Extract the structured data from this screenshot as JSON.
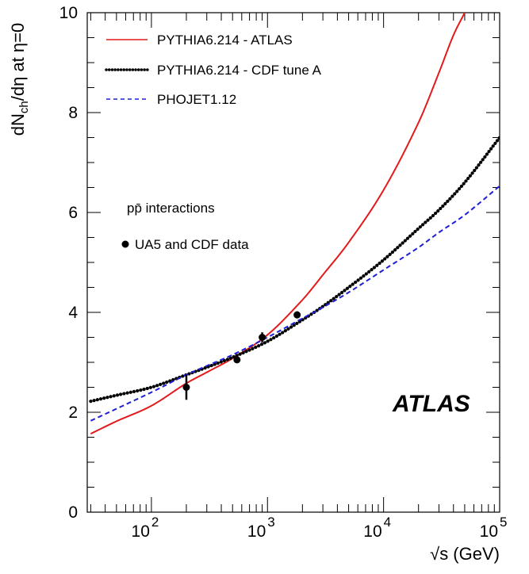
{
  "chart_data": {
    "type": "line",
    "title": "",
    "xlabel": "√s (GeV)",
    "ylabel": "dN_ch/dη at η=0",
    "xscale": "log",
    "xlim": [
      28,
      100000
    ],
    "ylim": [
      0,
      10
    ],
    "x_ticks": [
      {
        "value": 100,
        "label": "10",
        "exp": "2"
      },
      {
        "value": 1000,
        "label": "10",
        "exp": "3"
      },
      {
        "value": 10000,
        "label": "10",
        "exp": "4"
      },
      {
        "value": 100000,
        "label": "10",
        "exp": "5"
      }
    ],
    "y_ticks": [
      {
        "value": 0,
        "label": "0"
      },
      {
        "value": 2,
        "label": "2"
      },
      {
        "value": 4,
        "label": "4"
      },
      {
        "value": 6,
        "label": "6"
      },
      {
        "value": 8,
        "label": "8"
      },
      {
        "value": 10,
        "label": "10"
      }
    ],
    "legend_position": "top-left",
    "series": [
      {
        "name": "PYTHIA6.214 - ATLAS",
        "style": "solid",
        "color": "#e31a1c",
        "x": [
          30,
          50,
          100,
          200,
          300,
          500,
          1000,
          2000,
          3000,
          5000,
          10000,
          20000,
          30000,
          40000,
          50000
        ],
        "y": [
          1.57,
          1.82,
          2.13,
          2.58,
          2.8,
          3.08,
          3.55,
          4.25,
          4.75,
          5.4,
          6.45,
          7.8,
          8.8,
          9.55,
          10.0
        ]
      },
      {
        "name": "PYTHIA6.214 - CDF tune A",
        "style": "dotted",
        "color": "#000000",
        "x": [
          30,
          50,
          100,
          200,
          300,
          500,
          1000,
          2000,
          3000,
          5000,
          10000,
          20000,
          30000,
          50000,
          100000
        ],
        "y": [
          2.22,
          2.34,
          2.5,
          2.75,
          2.9,
          3.1,
          3.42,
          3.85,
          4.12,
          4.5,
          5.05,
          5.68,
          6.05,
          6.6,
          7.5
        ]
      },
      {
        "name": "PHOJET1.12",
        "style": "dashed",
        "color": "#1f1fd6",
        "x": [
          30,
          50,
          100,
          200,
          300,
          500,
          1000,
          2000,
          3000,
          5000,
          10000,
          20000,
          30000,
          50000,
          100000
        ],
        "y": [
          1.83,
          2.07,
          2.4,
          2.75,
          2.93,
          3.15,
          3.5,
          3.88,
          4.1,
          4.4,
          4.85,
          5.3,
          5.6,
          5.95,
          6.53
        ]
      }
    ],
    "data_points": {
      "name": "UA5 and CDF data",
      "points": [
        {
          "x": 200,
          "y": 2.5,
          "yerr_low": 0.25,
          "yerr_high": 0.25
        },
        {
          "x": 546,
          "y": 3.05,
          "yerr_low": 0.03,
          "yerr_high": 0.03
        },
        {
          "x": 900,
          "y": 3.5,
          "yerr_low": 0.1,
          "yerr_high": 0.1
        },
        {
          "x": 1800,
          "y": 3.95,
          "yerr_low": 0.07,
          "yerr_high": 0.07
        }
      ]
    },
    "annotations": [
      {
        "text": "pp̄ interactions"
      },
      {
        "text": "ATLAS"
      }
    ]
  }
}
